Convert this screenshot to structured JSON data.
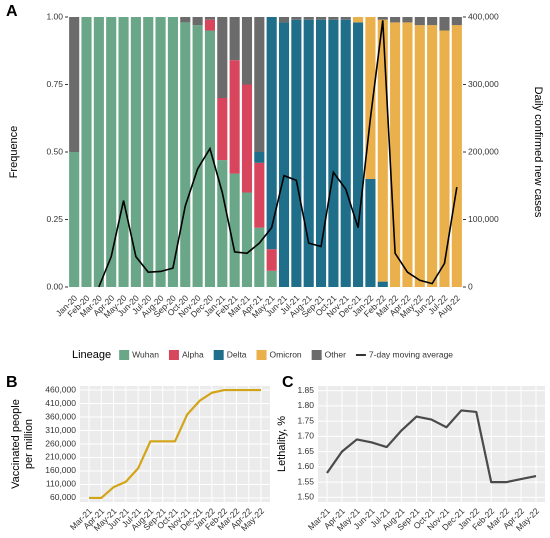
{
  "chart_data": [
    {
      "type": "bar",
      "panel": "A",
      "stacked": true,
      "ylabel": "Frequence",
      "y2label": "Daily confirmed new cases",
      "categories": [
        "Jan-20",
        "Feb-20",
        "Mar-20",
        "Apr-20",
        "May-20",
        "Jun-20",
        "Jul-20",
        "Aug-20",
        "Sep-20",
        "Oct-20",
        "Nov-20",
        "Dec-20",
        "Jan-21",
        "Feb-21",
        "Mar-21",
        "Apr-21",
        "May-21",
        "Jun-21",
        "Jul-21",
        "Aug-21",
        "Sep-21",
        "Oct-21",
        "Nov-21",
        "Dec-21",
        "Jan-22",
        "Feb-22",
        "Mar-22",
        "Apr-22",
        "May-22",
        "Jun-22",
        "Jul-22",
        "Aug-22"
      ],
      "legend_title": "Lineage",
      "series": [
        {
          "name": "Wuhan",
          "color": "#6aa688",
          "values": [
            0.5,
            1,
            1,
            1,
            1,
            1,
            1,
            1,
            1,
            0.98,
            0.97,
            0.95,
            0.47,
            0.42,
            0.35,
            0.22,
            0.06,
            0,
            0,
            0,
            0,
            0,
            0,
            0,
            0,
            0,
            0,
            0,
            0,
            0,
            0,
            0
          ]
        },
        {
          "name": "Alpha",
          "color": "#d8465e",
          "values": [
            0,
            0,
            0,
            0,
            0,
            0,
            0,
            0,
            0,
            0,
            0,
            0.04,
            0.23,
            0.42,
            0.4,
            0.24,
            0.08,
            0,
            0,
            0,
            0,
            0,
            0,
            0,
            0,
            0,
            0,
            0,
            0,
            0,
            0,
            0
          ]
        },
        {
          "name": "Delta",
          "color": "#1f6e8a",
          "values": [
            0,
            0,
            0,
            0,
            0,
            0,
            0,
            0,
            0,
            0,
            0,
            0,
            0,
            0,
            0,
            0.04,
            0.86,
            0.98,
            0.99,
            0.99,
            0.99,
            0.99,
            0.99,
            0.98,
            0.4,
            0.02,
            0,
            0,
            0,
            0,
            0,
            0
          ]
        },
        {
          "name": "Omicron",
          "color": "#e9b04c",
          "values": [
            0,
            0,
            0,
            0,
            0,
            0,
            0,
            0,
            0,
            0,
            0,
            0,
            0,
            0,
            0,
            0,
            0,
            0,
            0,
            0,
            0,
            0,
            0,
            0.02,
            0.6,
            0.97,
            0.98,
            0.98,
            0.97,
            0.97,
            0.95,
            0.97
          ]
        },
        {
          "name": "Other",
          "color": "#6b6b6b",
          "values": [
            0.5,
            0,
            0,
            0,
            0,
            0,
            0,
            0,
            0,
            0.02,
            0.03,
            0.01,
            0.3,
            0.16,
            0.25,
            0.5,
            0,
            0.02,
            0.01,
            0.01,
            0.01,
            0.01,
            0.01,
            0,
            0,
            0.01,
            0.02,
            0.02,
            0.03,
            0.03,
            0.05,
            0.03
          ]
        },
        {
          "name": "7-day moving average",
          "type": "line",
          "axis": "y2",
          "color": "#000000",
          "values": [
            null,
            null,
            0,
            45000,
            128000,
            45000,
            22000,
            23000,
            28000,
            120000,
            175000,
            205000,
            140000,
            52000,
            50000,
            65000,
            88000,
            165000,
            158000,
            65000,
            60000,
            170000,
            145000,
            88000,
            250000,
            395000,
            50000,
            22000,
            10000,
            5000,
            35000,
            148000
          ]
        }
      ],
      "ylim": [
        0,
        1
      ],
      "yticks": [
        {
          "value": 0,
          "label": "0.00"
        },
        {
          "value": 0.25,
          "label": "0.25"
        },
        {
          "value": 0.5,
          "label": "0.50"
        },
        {
          "value": 0.75,
          "label": "0.75"
        },
        {
          "value": 1,
          "label": "1.00"
        }
      ],
      "y2lim": [
        0,
        400000
      ],
      "y2ticks": [
        0,
        {
          "value": 100000,
          "label": "100,000"
        },
        {
          "value": 200000,
          "label": "200,000"
        },
        {
          "value": 300000,
          "label": "300,000"
        },
        {
          "value": 400000,
          "label": "400,000"
        }
      ]
    },
    {
      "type": "line",
      "panel": "B",
      "ylabel": [
        "Vaccinated people",
        "per million"
      ],
      "color": "#d4a418",
      "grid": true,
      "categories": [
        "Mar-21",
        "Apr-21",
        "May-21",
        "Jun-21",
        "Jul-21",
        "Aug-21",
        "Sep-21",
        "Oct-21",
        "Nov-21",
        "Dec-21",
        "Jan-22",
        "Feb-22",
        "Mar-22",
        "Apr-22",
        "May-22"
      ],
      "values": [
        60000,
        60000,
        100000,
        120000,
        170000,
        270000,
        270000,
        270000,
        370000,
        420000,
        450000,
        460000,
        460000,
        460000,
        460000
      ],
      "ylim": [
        45000,
        475000
      ],
      "yticks": [
        {
          "value": 60000,
          "label": "60,000"
        },
        {
          "value": 110000,
          "label": "110,000"
        },
        {
          "value": 160000,
          "label": "160,000"
        },
        {
          "value": 210000,
          "label": "210,000"
        },
        {
          "value": 260000,
          "label": "260,000"
        },
        {
          "value": 310000,
          "label": "310,000"
        },
        {
          "value": 360000,
          "label": "360,000"
        },
        {
          "value": 410000,
          "label": "410,000"
        },
        {
          "value": 460000,
          "label": "460,000"
        }
      ]
    },
    {
      "type": "line",
      "panel": "C",
      "ylabel": [
        "Lethality, %"
      ],
      "color": "#4a4a4a",
      "grid": true,
      "categories": [
        "Mar-21",
        "Apr-21",
        "May-21",
        "Jun-21",
        "Jul-21",
        "Aug-21",
        "Sep-21",
        "Oct-21",
        "Nov-21",
        "Dec-21",
        "Jan-22",
        "Feb-22",
        "Mar-22",
        "Apr-22",
        "May-22"
      ],
      "values": [
        1.58,
        1.65,
        1.69,
        1.68,
        1.665,
        1.72,
        1.765,
        1.755,
        1.73,
        1.785,
        1.78,
        1.55,
        1.55,
        1.56,
        1.57
      ],
      "ylim": [
        1.485,
        1.865
      ],
      "yticks": [
        {
          "value": 1.5,
          "label": "1.50"
        },
        {
          "value": 1.55,
          "label": "1.55"
        },
        {
          "value": 1.6,
          "label": "1.60"
        },
        {
          "value": 1.65,
          "label": "1.65"
        },
        {
          "value": 1.7,
          "label": "1.70"
        },
        {
          "value": 1.75,
          "label": "1.75"
        },
        {
          "value": 1.8,
          "label": "1.80"
        },
        {
          "value": 1.85,
          "label": "1.85"
        }
      ]
    }
  ]
}
